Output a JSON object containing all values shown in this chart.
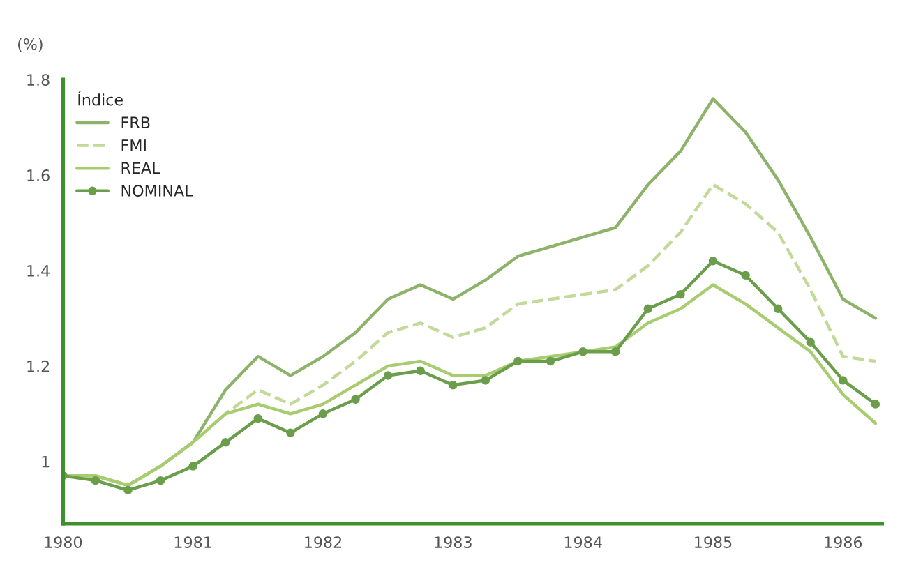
{
  "chart_data": {
    "type": "line",
    "ylabel": "(%)",
    "legend_title": "Índice",
    "x": [
      1980,
      1980.25,
      1980.5,
      1980.75,
      1981,
      1981.25,
      1981.5,
      1981.75,
      1982,
      1982.25,
      1982.5,
      1982.75,
      1983,
      1983.25,
      1983.5,
      1983.75,
      1984,
      1984.25,
      1984.5,
      1984.75,
      1985,
      1985.25,
      1985.5,
      1985.75,
      1986,
      1986.25
    ],
    "series": [
      {
        "name": "FRB",
        "color": "#8db36a",
        "line_style": "solid",
        "marker": "none",
        "values": [
          0.97,
          0.97,
          0.95,
          0.99,
          1.04,
          1.15,
          1.22,
          1.18,
          1.22,
          1.27,
          1.34,
          1.37,
          1.34,
          1.38,
          1.43,
          1.45,
          1.47,
          1.49,
          1.58,
          1.65,
          1.76,
          1.69,
          1.59,
          1.47,
          1.34,
          1.3
        ]
      },
      {
        "name": "FMI",
        "color": "#c3d99a",
        "line_style": "dashed",
        "marker": "none",
        "values": [
          0.97,
          0.97,
          0.95,
          0.99,
          1.04,
          1.1,
          1.15,
          1.12,
          1.16,
          1.21,
          1.27,
          1.29,
          1.26,
          1.28,
          1.33,
          1.34,
          1.35,
          1.36,
          1.41,
          1.48,
          1.58,
          1.54,
          1.48,
          1.36,
          1.22,
          1.21
        ]
      },
      {
        "name": "REAL",
        "color": "#a8cc70",
        "line_style": "solid",
        "marker": "none",
        "values": [
          0.97,
          0.97,
          0.95,
          0.99,
          1.04,
          1.1,
          1.12,
          1.1,
          1.12,
          1.16,
          1.2,
          1.21,
          1.18,
          1.18,
          1.21,
          1.22,
          1.23,
          1.24,
          1.29,
          1.32,
          1.37,
          1.33,
          1.28,
          1.23,
          1.14,
          1.08
        ]
      },
      {
        "name": "NOMINAL",
        "color": "#6a9e4a",
        "line_style": "solid",
        "marker": "circle",
        "values": [
          0.97,
          0.96,
          0.94,
          0.96,
          0.99,
          1.04,
          1.09,
          1.06,
          1.1,
          1.13,
          1.18,
          1.19,
          1.16,
          1.17,
          1.21,
          1.21,
          1.23,
          1.23,
          1.32,
          1.35,
          1.42,
          1.39,
          1.32,
          1.25,
          1.17,
          1.12
        ]
      }
    ],
    "xlim": [
      1980,
      1986.3
    ],
    "xticks": [
      1980,
      1981,
      1982,
      1983,
      1984,
      1985,
      1986
    ],
    "ylim": [
      0.87,
      1.8
    ],
    "yticks": [
      1,
      1.2,
      1.4,
      1.6,
      1.8
    ],
    "grid": false,
    "legend": "top left"
  }
}
